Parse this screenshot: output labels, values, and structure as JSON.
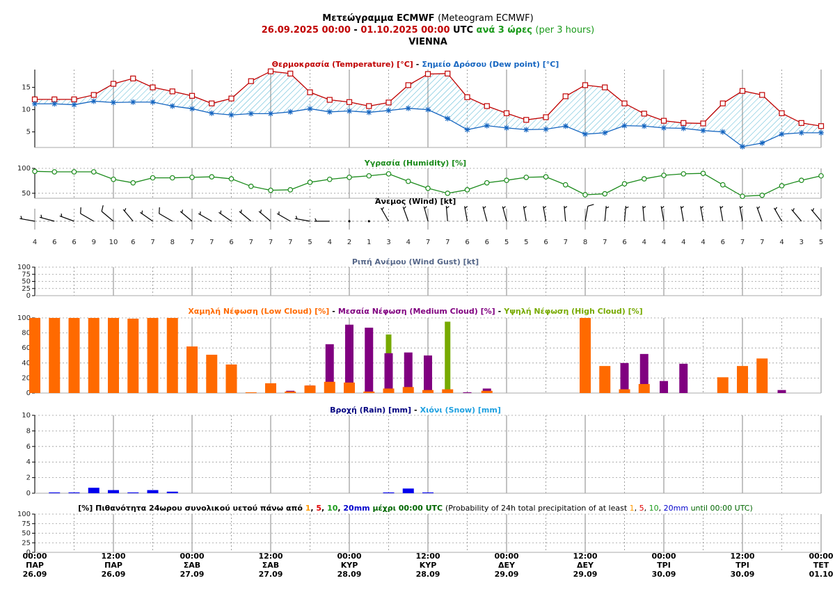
{
  "header": {
    "lines": [
      [
        {
          "text": "Μετεώγραμμα ECMWF ",
          "color": "#000000",
          "bold": true
        },
        {
          "text": "(Meteogram ECMWF)",
          "color": "#000000",
          "bold": false
        }
      ],
      [
        {
          "text": "26.09.2025 00:00",
          "color": "#c00000",
          "bold": true
        },
        {
          "text": " - ",
          "color": "#000000",
          "bold": true
        },
        {
          "text": "01.10.2025 00:00",
          "color": "#c00000",
          "bold": true
        },
        {
          "text": " UTC ",
          "color": "#000000",
          "bold": true
        },
        {
          "text": "ανά 3 ώρες ",
          "color": "#1a9a1a",
          "bold": true
        },
        {
          "text": "(per 3 hours)",
          "color": "#1a9a1a",
          "bold": false
        }
      ],
      [
        {
          "text": "VIENNA",
          "color": "#000000",
          "bold": true
        }
      ]
    ]
  },
  "time_axis": {
    "ticks": [
      {
        "time": "00:00",
        "day": "ΠΑΡ",
        "date": "26.09"
      },
      {
        "time": "12:00",
        "day": "ΠΑΡ",
        "date": "26.09"
      },
      {
        "time": "00:00",
        "day": "ΣΑΒ",
        "date": "27.09"
      },
      {
        "time": "12:00",
        "day": "ΣΑΒ",
        "date": "27.09"
      },
      {
        "time": "00:00",
        "day": "ΚΥΡ",
        "date": "28.09"
      },
      {
        "time": "12:00",
        "day": "ΚΥΡ",
        "date": "28.09"
      },
      {
        "time": "00:00",
        "day": "ΔΕΥ",
        "date": "29.09"
      },
      {
        "time": "12:00",
        "day": "ΔΕΥ",
        "date": "29.09"
      },
      {
        "time": "00:00",
        "day": "ΤΡΙ",
        "date": "30.09"
      },
      {
        "time": "12:00",
        "day": "ΤΡΙ",
        "date": "30.09"
      },
      {
        "time": "00:00",
        "day": "ΤΕΤ",
        "date": "01.10"
      }
    ]
  },
  "chart_data": [
    {
      "type": "line",
      "separator": "-",
      "ylim": [
        1.5,
        19
      ],
      "yticks": [
        5,
        10,
        15
      ],
      "grid": false,
      "hatch": "#1ea0c8",
      "series": [
        {
          "name": "Θερμοκρασία (Temperature) [°C]",
          "color": "#c00000",
          "marker": "square",
          "values": [
            12.3,
            12.3,
            12.3,
            13.3,
            15.8,
            17.0,
            15.0,
            14.1,
            13.1,
            11.4,
            12.5,
            16.4,
            18.6,
            18.1,
            13.9,
            12.2,
            11.7,
            10.8,
            11.6,
            15.5,
            18.0,
            18.1,
            12.8,
            10.8,
            9.2,
            7.7,
            8.3,
            13.0,
            15.5,
            15.0,
            11.4,
            9.1,
            7.5,
            7.0,
            6.9,
            11.4,
            14.2,
            13.3,
            9.2,
            7.0,
            6.3
          ]
        },
        {
          "name": "Σημείο Δρόσου (Dew point) [°C]",
          "color": "#1565c0",
          "marker": "asterisk",
          "values": [
            11.3,
            11.3,
            11.1,
            11.9,
            11.6,
            11.7,
            11.7,
            10.8,
            10.2,
            9.2,
            8.8,
            9.1,
            9.1,
            9.5,
            10.2,
            9.5,
            9.7,
            9.4,
            9.8,
            10.3,
            10.0,
            8.0,
            5.5,
            6.4,
            5.9,
            5.5,
            5.6,
            6.3,
            4.5,
            4.8,
            6.4,
            6.3,
            5.9,
            5.8,
            5.3,
            5.0,
            1.7,
            2.5,
            4.5,
            4.8,
            4.8
          ]
        }
      ]
    },
    {
      "type": "line",
      "ylim": [
        40,
        100
      ],
      "yticks": [
        50,
        100
      ],
      "grid": true,
      "series": [
        {
          "name": "Υγρασία (Humidity) [%]",
          "color": "#1a8a1a",
          "marker": "circle",
          "values": [
            94,
            93,
            93,
            93,
            78,
            71,
            81,
            81,
            82,
            83,
            79,
            64,
            56,
            57,
            72,
            78,
            82,
            85,
            89,
            74,
            60,
            50,
            57,
            71,
            76,
            82,
            83,
            67,
            47,
            49,
            69,
            79,
            86,
            89,
            90,
            67,
            44,
            46,
            65,
            76,
            85
          ]
        }
      ]
    },
    {
      "type": "barbs",
      "title": "Άνεμος (Wind) [kt]",
      "title_color": "#000000",
      "speeds": [
        4,
        6,
        6,
        9,
        10,
        6,
        7,
        8,
        7,
        7,
        6,
        7,
        7,
        7,
        5,
        4,
        2,
        1,
        3,
        4,
        7,
        7,
        6,
        6,
        5,
        5,
        6,
        7,
        8,
        7,
        6,
        4,
        4,
        4,
        4,
        6,
        7,
        7,
        4,
        3,
        5
      ],
      "directions": [
        280,
        285,
        290,
        300,
        310,
        320,
        305,
        300,
        310,
        300,
        305,
        310,
        310,
        300,
        280,
        270,
        250,
        60,
        330,
        340,
        345,
        355,
        350,
        345,
        345,
        350,
        350,
        355,
        10,
        5,
        5,
        355,
        350,
        350,
        350,
        350,
        350,
        340,
        330,
        320,
        320
      ]
    },
    {
      "type": "bar",
      "title": "Ριπή Ανέμου (Wind Gust) [kt]",
      "title_color": "#556688",
      "ylim": [
        0,
        100
      ],
      "yticks": [
        0,
        25,
        50,
        75,
        100
      ],
      "grid": true,
      "series": []
    },
    {
      "type": "bar",
      "separator": "-",
      "ylim": [
        0,
        100
      ],
      "yticks": [
        0,
        20,
        40,
        60,
        80,
        100
      ],
      "grid": true,
      "series": [
        {
          "name": "Χαμηλή Νέφωση (Low Cloud) [%]",
          "color": "#ff6a00",
          "values": [
            100,
            100,
            100,
            100,
            100,
            99,
            100,
            100,
            62,
            51,
            38,
            1,
            13,
            2,
            10,
            15,
            14,
            2,
            6,
            8,
            4,
            5,
            0,
            3,
            0,
            0,
            0,
            0,
            100,
            36,
            5,
            12,
            0,
            0,
            0,
            21,
            36,
            46,
            0,
            0,
            0
          ]
        },
        {
          "name": "Μεσαία Νέφωση (Medium Cloud) [%]",
          "color": "#800080",
          "values": [
            0,
            0,
            0,
            0,
            0,
            0,
            0,
            0,
            0,
            0,
            0,
            0,
            0,
            3,
            10,
            65,
            91,
            87,
            53,
            54,
            50,
            0,
            1,
            6,
            0,
            0,
            0,
            0,
            0,
            0,
            40,
            52,
            16,
            39,
            0,
            0,
            0,
            0,
            4,
            0,
            0
          ]
        },
        {
          "name": "Υψηλή Νέφωση (High Cloud) [%]",
          "color": "#77aa00",
          "values": [
            0,
            0,
            0,
            0,
            0,
            0,
            0,
            0,
            0,
            0,
            0,
            0,
            0,
            0,
            0,
            0,
            0,
            0,
            78,
            0,
            0,
            95,
            0,
            0,
            0,
            0,
            0,
            0,
            0,
            0,
            0,
            0,
            0,
            0,
            0,
            0,
            0,
            0,
            0,
            0,
            0
          ]
        }
      ]
    },
    {
      "type": "bar",
      "separator": "-",
      "ylim": [
        0,
        10
      ],
      "yticks": [
        0,
        2,
        4,
        6,
        8,
        10
      ],
      "grid": true,
      "series": [
        {
          "name": "Βροχή (Rain) [mm]",
          "color": "#0000ee",
          "title_color": "#000080",
          "values": [
            0,
            0.1,
            0.1,
            0.7,
            0.4,
            0.1,
            0.4,
            0.2,
            0,
            0,
            0,
            0,
            0,
            0,
            0,
            0,
            0,
            0,
            0.1,
            0.6,
            0.1,
            0,
            0,
            0,
            0,
            0,
            0,
            0,
            0,
            0,
            0,
            0,
            0,
            0,
            0,
            0,
            0,
            0,
            0,
            0,
            0
          ]
        },
        {
          "name": "Χιόνι (Snow) [mm]",
          "color": "#1ea0e0",
          "values": [
            0,
            0,
            0,
            0,
            0,
            0,
            0,
            0,
            0,
            0,
            0,
            0,
            0,
            0,
            0,
            0,
            0,
            0,
            0,
            0,
            0,
            0,
            0,
            0,
            0,
            0,
            0,
            0,
            0,
            0,
            0,
            0,
            0,
            0,
            0,
            0,
            0,
            0,
            0,
            0,
            0
          ]
        }
      ]
    },
    {
      "type": "bar",
      "ylim": [
        0,
        100
      ],
      "yticks": [
        0,
        25,
        50,
        75,
        100
      ],
      "grid": true,
      "series": [],
      "title": [
        {
          "text": "[%] Πιθανότητα 24ωρου συνολικού υετού πάνω από ",
          "color": "#000000",
          "bold": true
        },
        {
          "text": "1",
          "color": "#ff9900",
          "bold": true
        },
        {
          "text": ", ",
          "color": "#000000",
          "bold": true
        },
        {
          "text": "5",
          "color": "#e00000",
          "bold": true
        },
        {
          "text": ", ",
          "color": "#000000",
          "bold": true
        },
        {
          "text": "10",
          "color": "#1a9a1a",
          "bold": true
        },
        {
          "text": ", ",
          "color": "#000000",
          "bold": true
        },
        {
          "text": "20mm",
          "color": "#0000cc",
          "bold": true
        },
        {
          "text": " μέχρι 00:00 UTC ",
          "color": "#006600",
          "bold": true
        },
        {
          "text": "(Probability of 24h total precipitation of at least ",
          "color": "#000000",
          "bold": false
        },
        {
          "text": "1",
          "color": "#ff9900",
          "bold": false
        },
        {
          "text": ", ",
          "color": "#000000",
          "bold": false
        },
        {
          "text": "5",
          "color": "#e00000",
          "bold": false
        },
        {
          "text": ", ",
          "color": "#000000",
          "bold": false
        },
        {
          "text": "10",
          "color": "#1a9a1a",
          "bold": false
        },
        {
          "text": ", ",
          "color": "#000000",
          "bold": false
        },
        {
          "text": "20mm",
          "color": "#0000cc",
          "bold": false
        },
        {
          "text": " until 00:00 UTC)",
          "color": "#006600",
          "bold": false
        }
      ]
    }
  ]
}
